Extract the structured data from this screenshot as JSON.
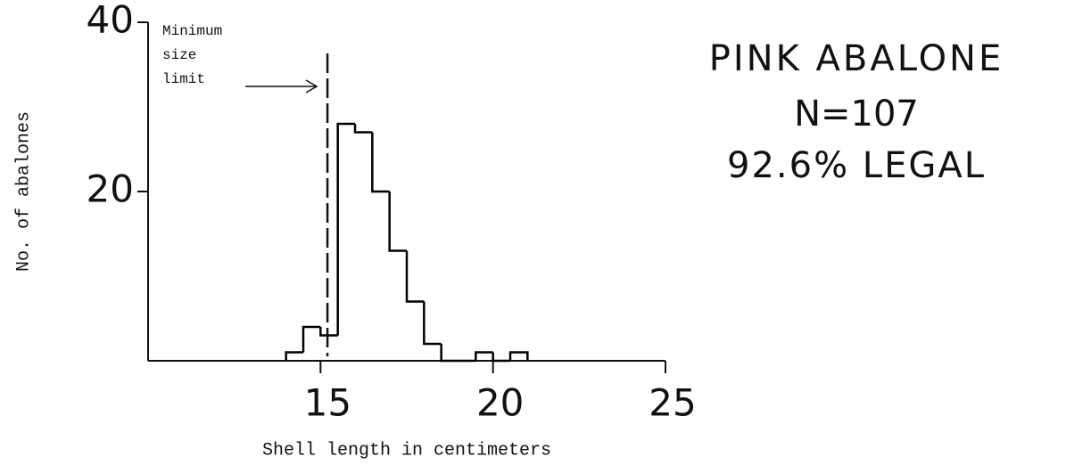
{
  "chart_data": {
    "type": "histogram",
    "title": [
      "PINK ABALONE",
      "N=107",
      "92.6% LEGAL"
    ],
    "xlabel": "Shell length in centimeters",
    "ylabel": "No. of abalones",
    "bins": [
      14,
      14.5,
      15,
      15.5,
      16,
      16.5,
      17,
      17.5,
      18,
      18.5,
      19,
      19.5,
      20,
      20.5,
      21
    ],
    "values": [
      1,
      4,
      3,
      28,
      27,
      20,
      13,
      7,
      2,
      0,
      0,
      1,
      0,
      1
    ],
    "color": "#000000",
    "xlim": [
      10,
      25
    ],
    "xticks": [
      15,
      20,
      25
    ],
    "ylim": [
      0,
      40
    ],
    "yticks": [
      20,
      40
    ],
    "annotation": {
      "text": [
        "Minimum",
        "size",
        "limit"
      ],
      "x": 15.2
    }
  }
}
